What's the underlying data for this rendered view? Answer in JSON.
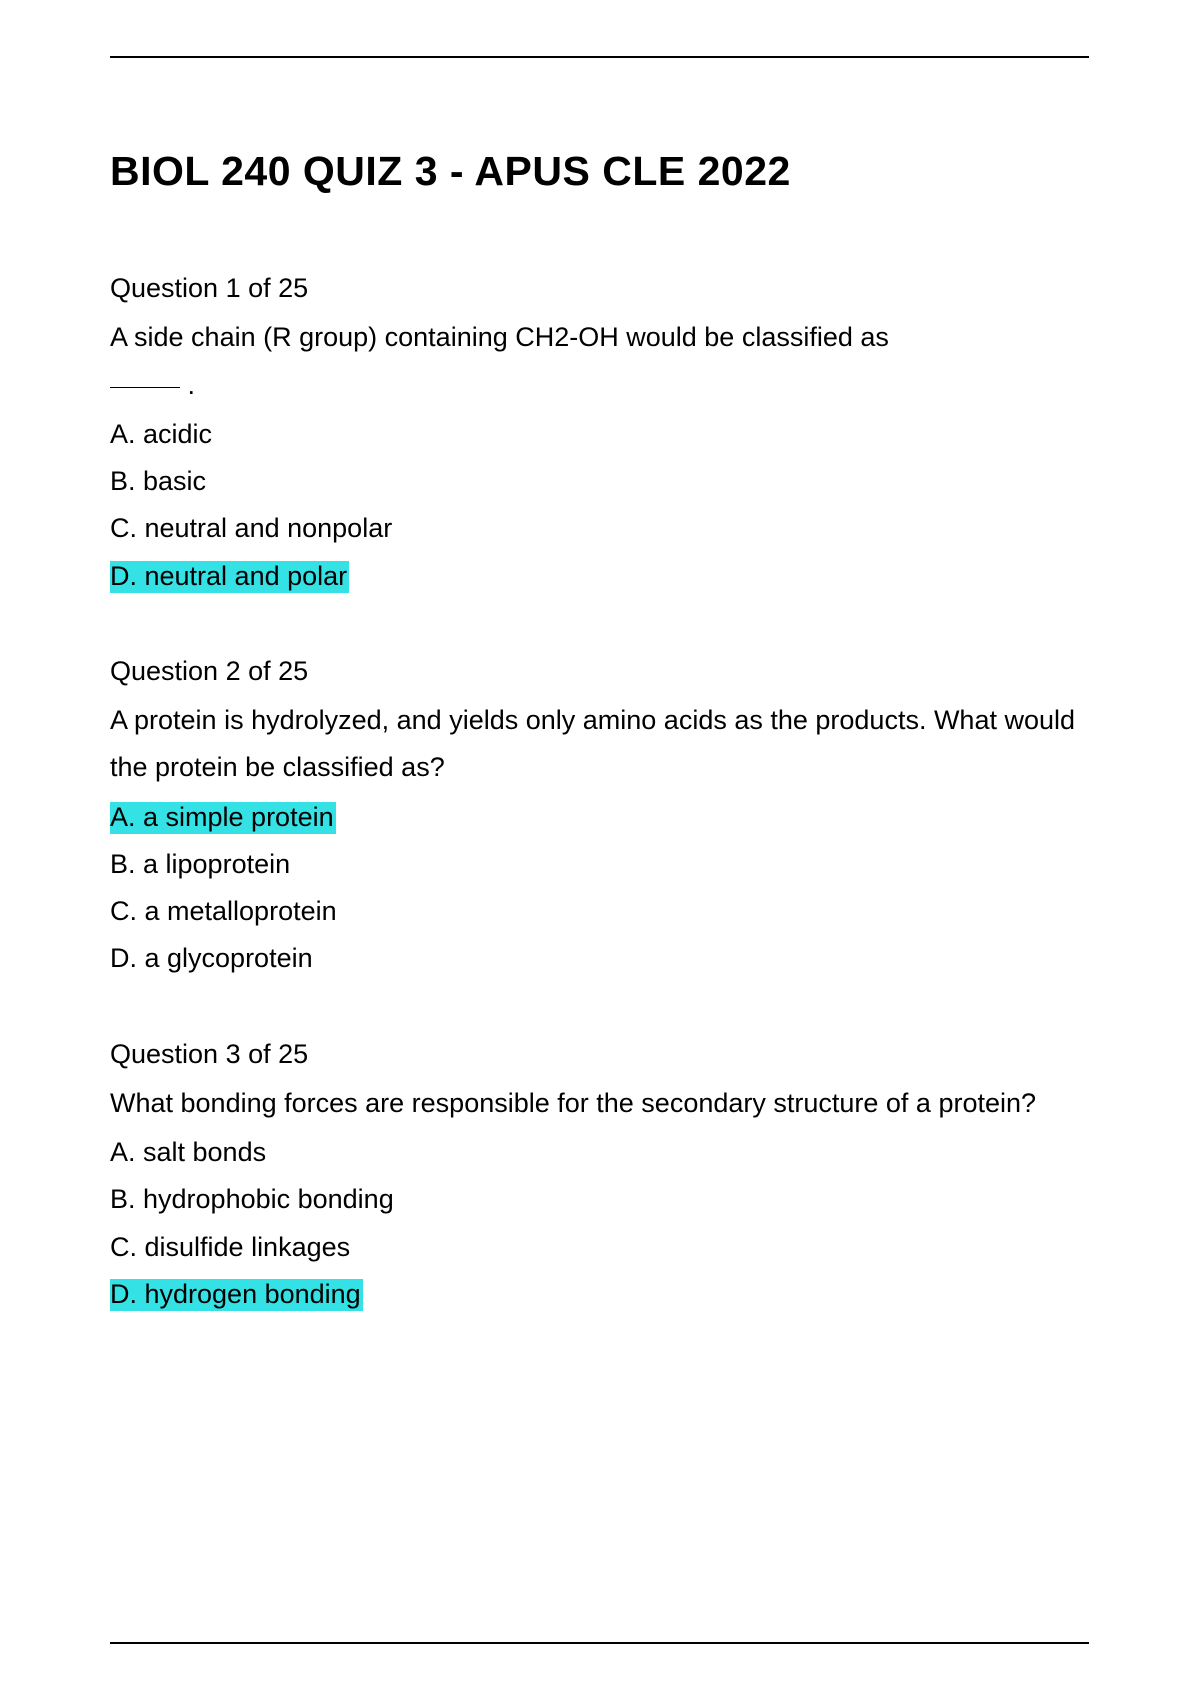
{
  "title": "BIOL 240 QUIZ 3 - APUS CLE 2022",
  "highlight_color": "#34e1e4",
  "questions": [
    {
      "header": "Question 1 of 25",
      "text_before_blank": "A side chain (R group) containing CH2-OH would be classified as",
      "text_after_blank": " .",
      "has_blank": true,
      "options": [
        {
          "label": "A. acidic",
          "highlighted": false
        },
        {
          "label": "B. basic",
          "highlighted": false
        },
        {
          "label": "C. neutral and nonpolar",
          "highlighted": false
        },
        {
          "label": "D. neutral and polar",
          "highlighted": true
        }
      ]
    },
    {
      "header": "Question 2 of 25",
      "text": "A protein is hydrolyzed, and yields only amino acids as the products. What would the protein be classified as?",
      "has_blank": false,
      "options": [
        {
          "label": "A. a simple protein",
          "highlighted": true
        },
        {
          "label": "B. a lipoprotein",
          "highlighted": false
        },
        {
          "label": "C. a metalloprotein",
          "highlighted": false
        },
        {
          "label": "D. a glycoprotein",
          "highlighted": false
        }
      ]
    },
    {
      "header": "Question 3 of 25",
      "text": "What bonding forces are responsible for the secondary structure of a protein?",
      "has_blank": false,
      "options": [
        {
          "label": "A. salt bonds",
          "highlighted": false
        },
        {
          "label": "B. hydrophobic bonding",
          "highlighted": false
        },
        {
          "label": "C. disulfide linkages",
          "highlighted": false
        },
        {
          "label": "D. hydrogen bonding",
          "highlighted": true
        }
      ]
    }
  ]
}
